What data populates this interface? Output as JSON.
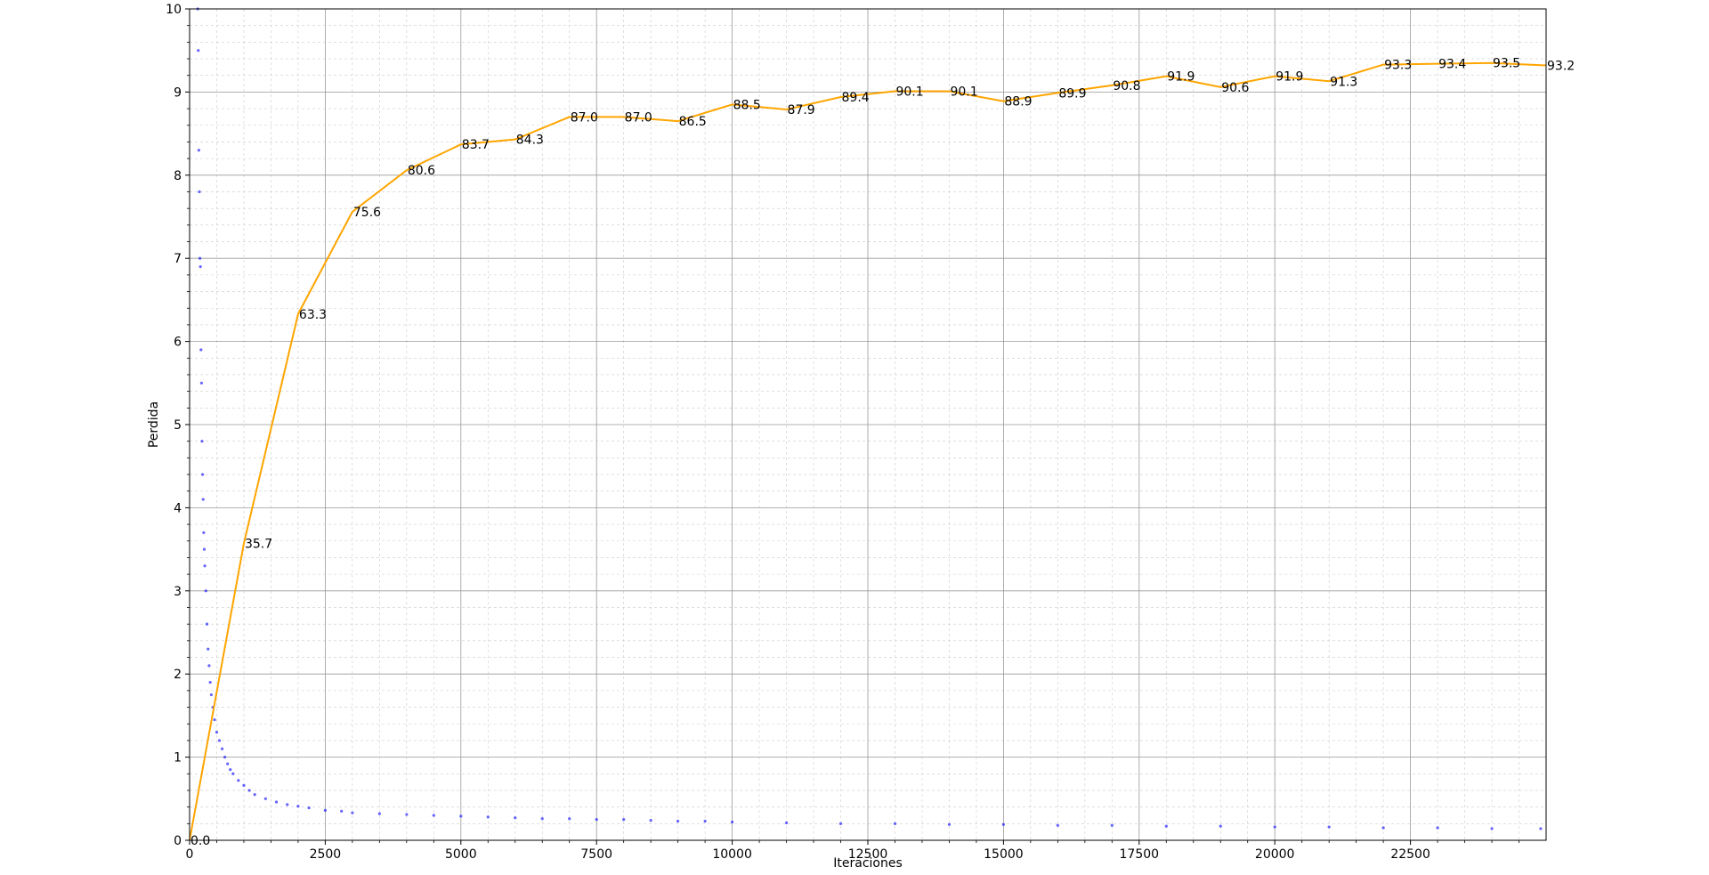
{
  "chart_data": {
    "type": "combo",
    "xlabel": "Iteraciones",
    "ylabel": "Perdida",
    "xlim": [
      0,
      25000
    ],
    "ylim": [
      0,
      10
    ],
    "xticks": [
      0,
      2500,
      5000,
      7500,
      10000,
      12500,
      15000,
      17500,
      20000,
      22500
    ],
    "yticks": [
      0,
      1,
      2,
      3,
      4,
      5,
      6,
      7,
      8,
      9,
      10
    ],
    "xminorticks": [
      500,
      1000,
      1500,
      2000,
      3000,
      3500,
      4000,
      4500,
      5500,
      6000,
      6500,
      7000,
      8000,
      8500,
      9000,
      9500,
      10500,
      11000,
      11500,
      12000,
      13000,
      13500,
      14000,
      14500,
      15500,
      16000,
      16500,
      17000,
      18000,
      18500,
      19000,
      19500,
      20500,
      21000,
      21500,
      22000,
      23000,
      23500,
      24000,
      24500
    ],
    "yminorticks": [
      0.2,
      0.4,
      0.6,
      0.8,
      1.2,
      1.4,
      1.6,
      1.8,
      2.2,
      2.4,
      2.6,
      2.8,
      3.2,
      3.4,
      3.6,
      3.8,
      4.2,
      4.4,
      4.6,
      4.8,
      5.2,
      5.4,
      5.6,
      5.8,
      6.2,
      6.4,
      6.6,
      6.8,
      7.2,
      7.4,
      7.6,
      7.8,
      8.2,
      8.4,
      8.6,
      8.8,
      9.2,
      9.4,
      9.6,
      9.8
    ],
    "grid": true,
    "minor_grid": true,
    "series": [
      {
        "type": "scatter",
        "color": "#0000ff",
        "x": [
          150,
          160,
          170,
          180,
          190,
          200,
          210,
          220,
          230,
          240,
          250,
          260,
          270,
          280,
          300,
          320,
          340,
          360,
          380,
          400,
          430,
          460,
          500,
          550,
          600,
          650,
          700,
          750,
          800,
          900,
          1000,
          1100,
          1200,
          1400,
          1600,
          1800,
          2000,
          2200,
          2500,
          2800,
          3000,
          3500,
          4000,
          4500,
          5000,
          5500,
          6000,
          6500,
          7000,
          7500,
          8000,
          8500,
          9000,
          9500,
          10000,
          11000,
          12000,
          13000,
          14000,
          15000,
          16000,
          17000,
          18000,
          19000,
          20000,
          21000,
          22000,
          23000,
          24000,
          24900
        ],
        "values": [
          10,
          9.5,
          8.3,
          7.8,
          7.0,
          6.9,
          5.9,
          5.5,
          4.8,
          4.4,
          4.1,
          3.7,
          3.5,
          3.3,
          3.0,
          2.6,
          2.3,
          2.1,
          1.9,
          1.75,
          1.6,
          1.45,
          1.3,
          1.2,
          1.1,
          1.0,
          0.92,
          0.85,
          0.8,
          0.72,
          0.66,
          0.6,
          0.55,
          0.5,
          0.46,
          0.43,
          0.41,
          0.39,
          0.36,
          0.35,
          0.33,
          0.32,
          0.31,
          0.3,
          0.29,
          0.28,
          0.27,
          0.26,
          0.26,
          0.25,
          0.25,
          0.24,
          0.23,
          0.23,
          0.22,
          0.21,
          0.2,
          0.2,
          0.19,
          0.19,
          0.18,
          0.18,
          0.17,
          0.17,
          0.16,
          0.16,
          0.15,
          0.15,
          0.14,
          0.14
        ]
      },
      {
        "type": "line",
        "color": "#ffa500",
        "x": [
          0,
          1000,
          2000,
          3000,
          4000,
          5000,
          6000,
          7000,
          8000,
          9000,
          10000,
          11000,
          12000,
          13000,
          14000,
          15000,
          16000,
          17000,
          18000,
          19000,
          20000,
          21000,
          22000,
          23000,
          24000,
          25000
        ],
        "values": [
          0,
          3.57,
          6.33,
          7.56,
          8.06,
          8.37,
          8.43,
          8.7,
          8.7,
          8.65,
          8.85,
          8.79,
          8.94,
          9.01,
          9.01,
          8.89,
          8.99,
          9.08,
          9.19,
          9.06,
          9.19,
          9.13,
          9.33,
          9.34,
          9.35,
          9.32
        ],
        "value_labels": [
          "0.0",
          "35.7",
          "63.3",
          "75.6",
          "80.6",
          "83.7",
          "84.3",
          "87.0",
          "87.0",
          "86.5",
          "88.5",
          "87.9",
          "89.4",
          "90.1",
          "90.1",
          "88.9",
          "89.9",
          "90.8",
          "91.9",
          "90.6",
          "91.9",
          "91.3",
          "93.3",
          "93.4",
          "93.5",
          "93.2"
        ]
      }
    ]
  }
}
